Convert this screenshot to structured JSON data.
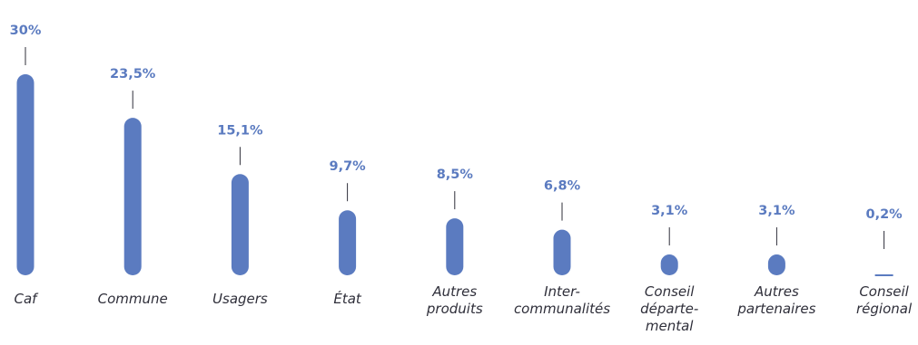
{
  "chart_data": {
    "type": "bar",
    "categories": [
      [
        "Caf"
      ],
      [
        "Commune"
      ],
      [
        "Usagers"
      ],
      [
        "État"
      ],
      [
        "Autres",
        "produits"
      ],
      [
        "Inter-",
        "communalités"
      ],
      [
        "Conseil",
        "départe-",
        "mental"
      ],
      [
        "Autres",
        "partenaires"
      ],
      [
        "Conseil",
        "régional"
      ]
    ],
    "values": [
      30,
      23.5,
      15.1,
      9.7,
      8.5,
      6.8,
      3.1,
      3.1,
      0.2
    ],
    "value_labels": [
      "30%",
      "23,5%",
      "15,1%",
      "9,7%",
      "8,5%",
      "6,8%",
      "3,1%",
      "3,1%",
      "0,2%"
    ],
    "ylim": [
      0,
      30
    ],
    "grid": false,
    "bar_color": "#5b7bc0",
    "label_color": "#5b7bc0",
    "category_color": "#2f2f3a",
    "connector_color": "#2f2f3a"
  }
}
